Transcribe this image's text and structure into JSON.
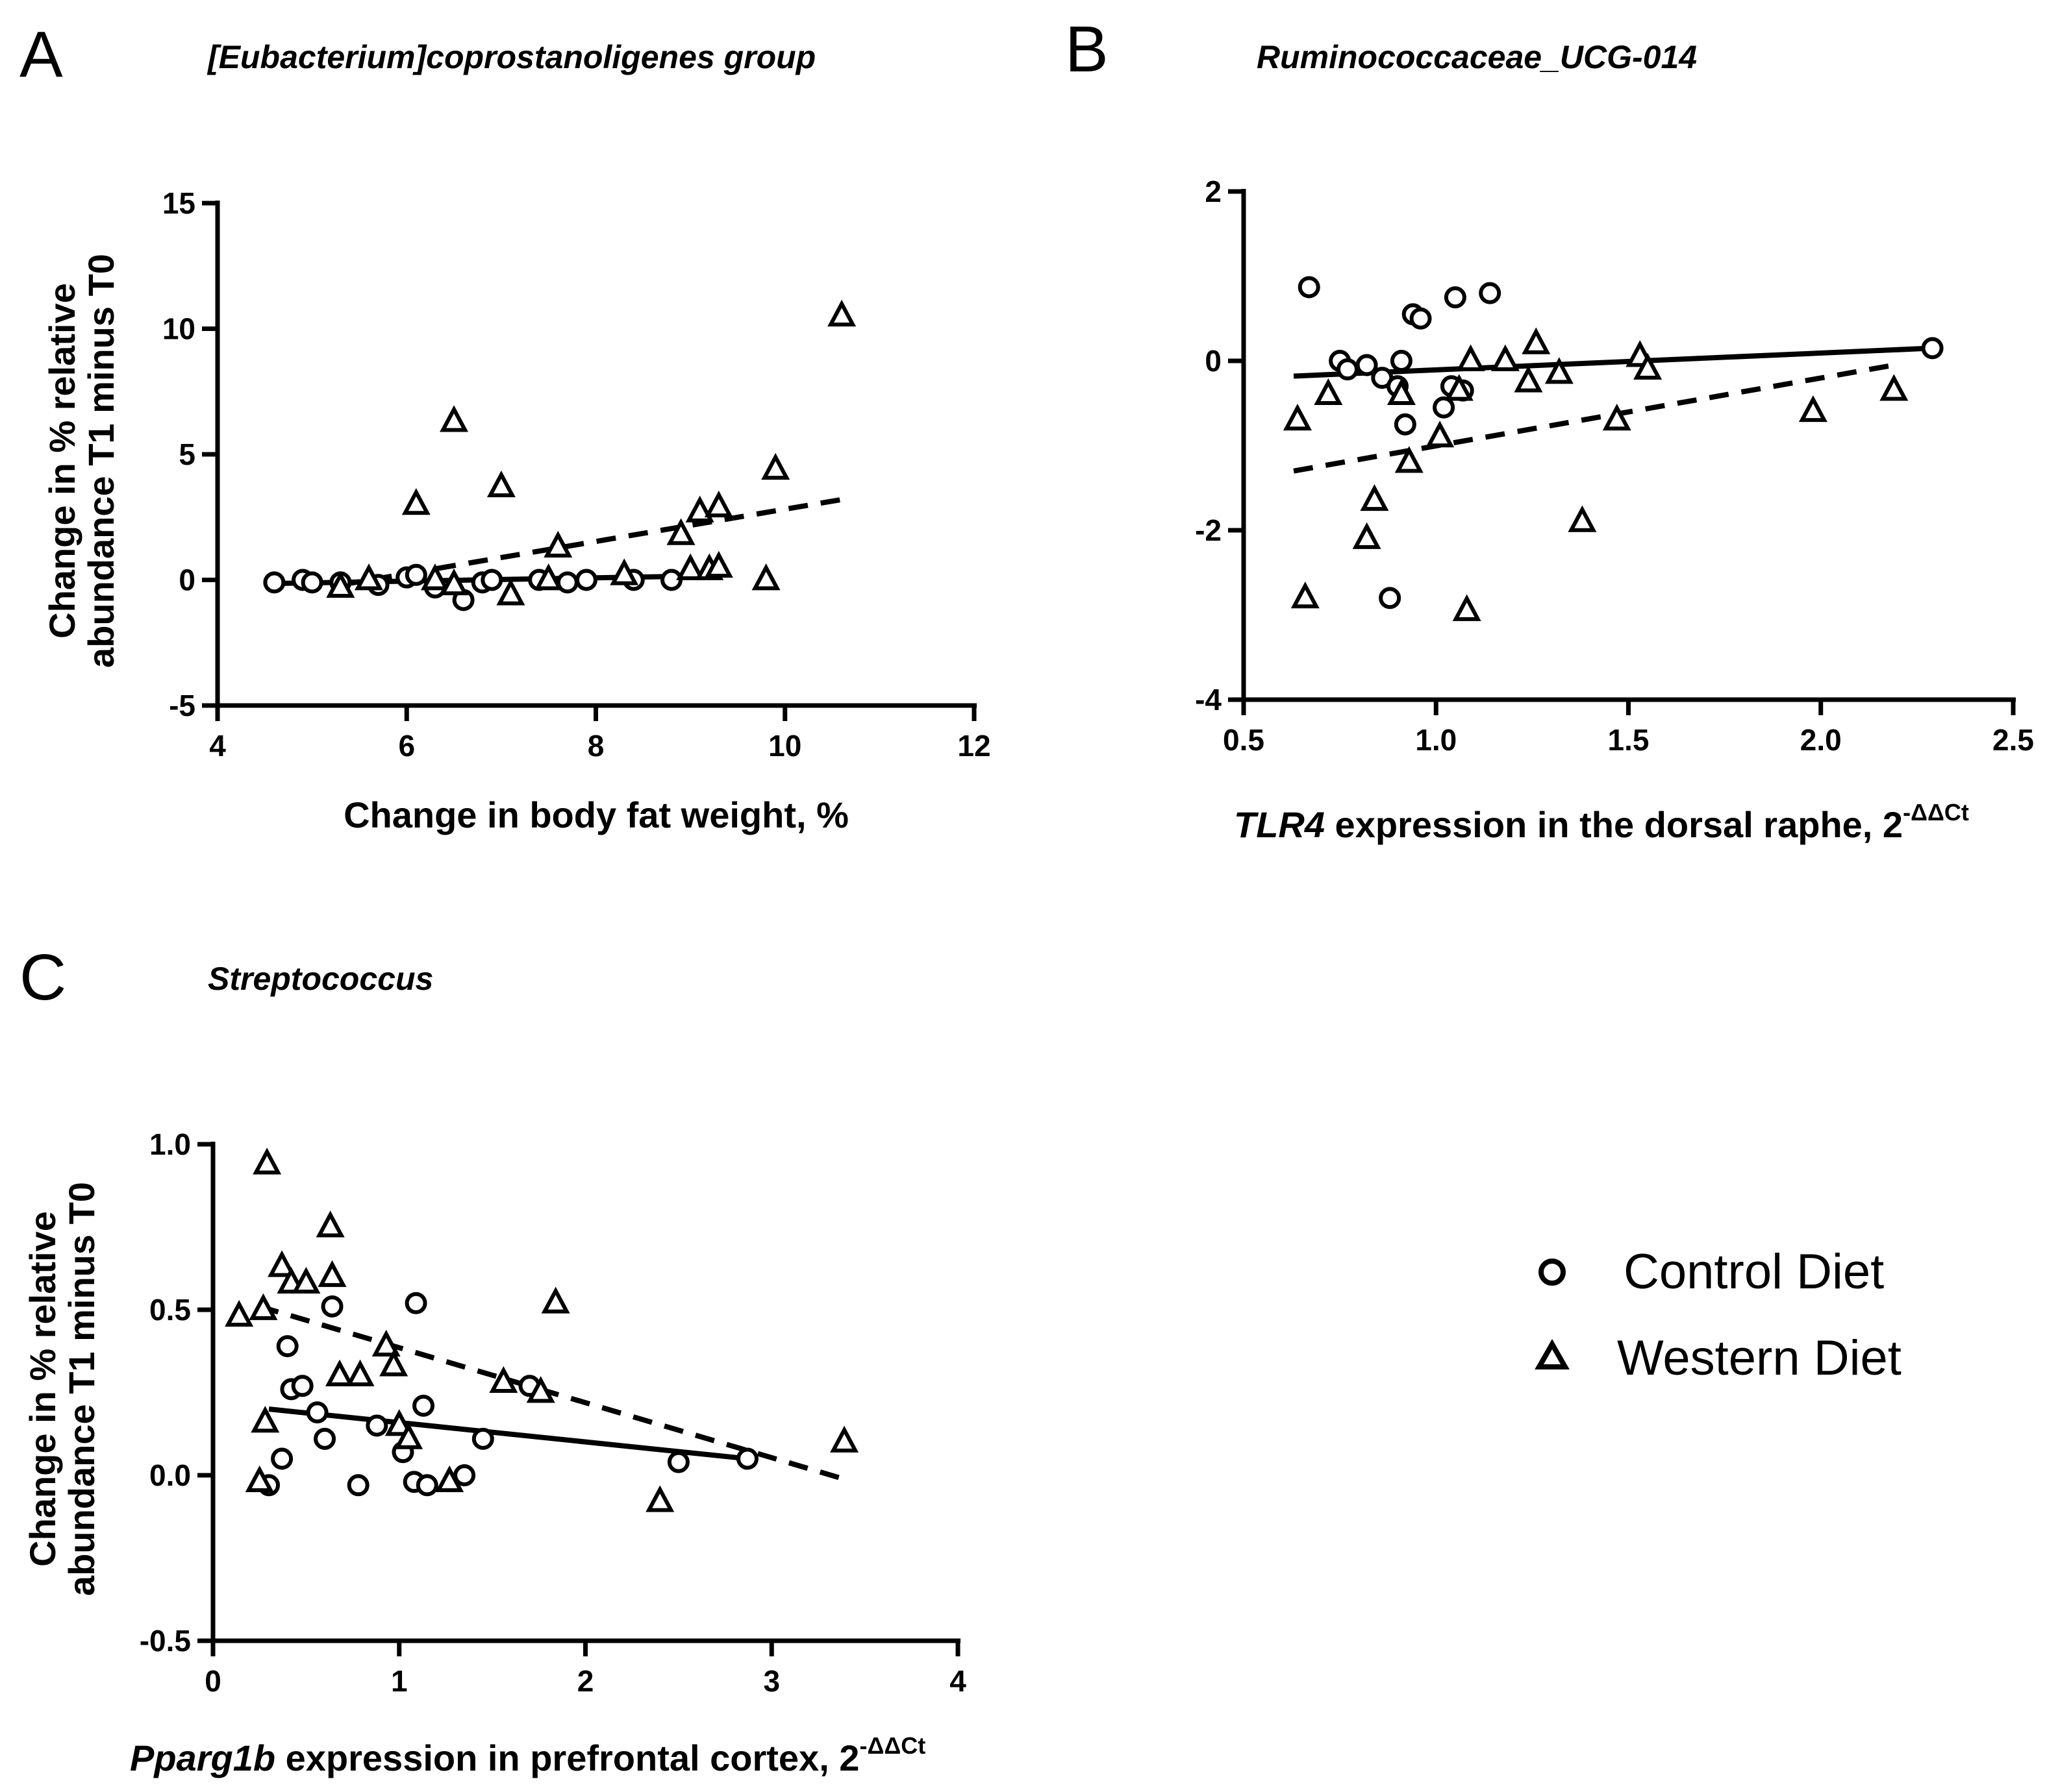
{
  "chart_data": [
    {
      "panel": "A",
      "type": "scatter",
      "title": "[Eubacterium]coprostanoligenes group",
      "xlabel": "Change in body fat weight, %",
      "xlabel_italic": "",
      "xlabel_rest": "Change in body fat weight, %",
      "xlabel_sup": "",
      "ylabel": [
        "Change in % relative",
        "abundance T1 minus T0"
      ],
      "xlim": [
        4,
        12
      ],
      "ylim": [
        -5,
        15
      ],
      "xticks": [
        4,
        6,
        8,
        10,
        12
      ],
      "yticks": [
        -5,
        0,
        5,
        10,
        15
      ],
      "xtick_labels": [
        "4",
        "6",
        "8",
        "10",
        "12"
      ],
      "ytick_labels": [
        "-5",
        "0",
        "5",
        "10",
        "15"
      ],
      "series": [
        {
          "name": "Control Diet",
          "marker": "circle",
          "points": [
            [
              4.6,
              -0.1
            ],
            [
              4.9,
              0.0
            ],
            [
              5.0,
              -0.1
            ],
            [
              5.3,
              -0.1
            ],
            [
              5.7,
              -0.2
            ],
            [
              6.0,
              0.1
            ],
            [
              6.1,
              0.2
            ],
            [
              6.3,
              -0.3
            ],
            [
              6.6,
              -0.8
            ],
            [
              6.8,
              -0.1
            ],
            [
              6.9,
              0.0
            ],
            [
              7.4,
              0.0
            ],
            [
              7.7,
              -0.1
            ],
            [
              7.9,
              0.0
            ],
            [
              8.4,
              0.0
            ],
            [
              8.8,
              0.0
            ]
          ],
          "fit": {
            "x": [
              4.5,
              9.0
            ],
            "y": [
              -0.15,
              0.15
            ],
            "style": "solid"
          }
        },
        {
          "name": "Western Diet",
          "marker": "triangle",
          "points": [
            [
              5.3,
              -0.3
            ],
            [
              5.6,
              0.0
            ],
            [
              6.1,
              3.0
            ],
            [
              6.3,
              0.0
            ],
            [
              6.5,
              6.3
            ],
            [
              6.5,
              -0.2
            ],
            [
              7.0,
              3.7
            ],
            [
              7.1,
              -0.6
            ],
            [
              7.5,
              0.0
            ],
            [
              7.6,
              1.3
            ],
            [
              8.3,
              0.2
            ],
            [
              8.9,
              1.8
            ],
            [
              9.0,
              0.4
            ],
            [
              9.1,
              2.7
            ],
            [
              9.2,
              0.4
            ],
            [
              9.3,
              0.5
            ],
            [
              9.3,
              2.9
            ],
            [
              9.8,
              0.0
            ],
            [
              9.9,
              4.4
            ],
            [
              10.6,
              10.5
            ]
          ],
          "fit": {
            "x": [
              5.3,
              10.6
            ],
            "y": [
              -0.2,
              3.2
            ],
            "style": "dashed"
          }
        }
      ]
    },
    {
      "panel": "B",
      "type": "scatter",
      "title": "Ruminococcaceae_UCG-014",
      "xlabel": "TLR4 expression in the dorsal raphe, 2-ΔΔCt",
      "xlabel_italic": "TLR4",
      "xlabel_rest": " expression in the dorsal raphe, 2",
      "xlabel_sup": "-ΔΔCt",
      "ylabel": [],
      "xlim": [
        0.5,
        2.5
      ],
      "ylim": [
        -4,
        2
      ],
      "xticks": [
        0.5,
        1.0,
        1.5,
        2.0,
        2.5
      ],
      "yticks": [
        -4,
        -2,
        0,
        2
      ],
      "xtick_labels": [
        "0.5",
        "1.0",
        "1.5",
        "2.0",
        "2.5"
      ],
      "ytick_labels": [
        "-4",
        "-2",
        "0",
        "2"
      ],
      "series": [
        {
          "name": "Control Diet",
          "marker": "circle",
          "points": [
            [
              0.67,
              0.87
            ],
            [
              0.75,
              0.0
            ],
            [
              0.77,
              -0.1
            ],
            [
              0.82,
              -0.05
            ],
            [
              0.86,
              -0.2
            ],
            [
              0.88,
              -2.8
            ],
            [
              0.9,
              -0.3
            ],
            [
              0.91,
              0.0
            ],
            [
              0.92,
              -0.75
            ],
            [
              0.94,
              0.55
            ],
            [
              0.96,
              0.5
            ],
            [
              1.02,
              -0.55
            ],
            [
              1.04,
              -0.3
            ],
            [
              1.05,
              0.75
            ],
            [
              1.07,
              -0.35
            ],
            [
              1.14,
              0.8
            ],
            [
              2.29,
              0.15
            ]
          ],
          "fit": {
            "x": [
              0.63,
              2.29
            ],
            "y": [
              -0.18,
              0.15
            ],
            "style": "solid"
          }
        },
        {
          "name": "Western Diet",
          "marker": "triangle",
          "points": [
            [
              0.64,
              -0.7
            ],
            [
              0.66,
              -2.8
            ],
            [
              0.72,
              -0.4
            ],
            [
              0.82,
              -2.1
            ],
            [
              0.84,
              -1.65
            ],
            [
              0.91,
              -0.4
            ],
            [
              0.93,
              -1.2
            ],
            [
              1.01,
              -0.9
            ],
            [
              1.06,
              -0.35
            ],
            [
              1.08,
              -2.95
            ],
            [
              1.09,
              0.0
            ],
            [
              1.18,
              0.0
            ],
            [
              1.24,
              -0.25
            ],
            [
              1.26,
              0.2
            ],
            [
              1.32,
              -0.15
            ],
            [
              1.38,
              -1.9
            ],
            [
              1.47,
              -0.7
            ],
            [
              1.53,
              0.05
            ],
            [
              1.55,
              -0.1
            ],
            [
              1.98,
              -0.6
            ],
            [
              2.19,
              -0.35
            ]
          ],
          "fit": {
            "x": [
              0.63,
              2.19
            ],
            "y": [
              -1.3,
              -0.05
            ],
            "style": "dashed"
          }
        }
      ]
    },
    {
      "panel": "C",
      "type": "scatter",
      "title": "Streptococcus",
      "xlabel": "Pparg1b expression in prefrontal cortex, 2-ΔΔCt",
      "xlabel_italic": "Pparg1b",
      "xlabel_rest": " expression in prefrontal cortex, 2",
      "xlabel_sup": "-ΔΔCt",
      "ylabel": [
        "Change in % relative",
        "abundance T1 minus T0"
      ],
      "xlim": [
        0,
        4
      ],
      "ylim": [
        -0.5,
        1.0
      ],
      "xticks": [
        0,
        1,
        2,
        3,
        4
      ],
      "yticks": [
        -0.5,
        0.0,
        0.5,
        1.0
      ],
      "xtick_labels": [
        "0",
        "1",
        "2",
        "3",
        "4"
      ],
      "ytick_labels": [
        "-0.5",
        "0.0",
        "0.5",
        "1.0"
      ],
      "series": [
        {
          "name": "Control Diet",
          "marker": "circle",
          "points": [
            [
              0.3,
              -0.03
            ],
            [
              0.37,
              0.05
            ],
            [
              0.4,
              0.39
            ],
            [
              0.42,
              0.26
            ],
            [
              0.48,
              0.27
            ],
            [
              0.56,
              0.19
            ],
            [
              0.6,
              0.11
            ],
            [
              0.64,
              0.51
            ],
            [
              0.78,
              -0.03
            ],
            [
              0.88,
              0.15
            ],
            [
              1.02,
              0.07
            ],
            [
              1.08,
              -0.02
            ],
            [
              1.09,
              0.52
            ],
            [
              1.13,
              0.21
            ],
            [
              1.15,
              -0.03
            ],
            [
              1.35,
              0.0
            ],
            [
              1.45,
              0.11
            ],
            [
              1.7,
              0.27
            ],
            [
              2.5,
              0.04
            ],
            [
              2.87,
              0.05
            ]
          ],
          "fit": {
            "x": [
              0.3,
              2.87
            ],
            "y": [
              0.2,
              0.05
            ],
            "style": "solid"
          }
        },
        {
          "name": "Western Diet",
          "marker": "triangle",
          "points": [
            [
              0.14,
              0.48
            ],
            [
              0.25,
              -0.02
            ],
            [
              0.27,
              0.5
            ],
            [
              0.28,
              0.16
            ],
            [
              0.29,
              0.94
            ],
            [
              0.37,
              0.63
            ],
            [
              0.42,
              0.58
            ],
            [
              0.5,
              0.58
            ],
            [
              0.63,
              0.75
            ],
            [
              0.64,
              0.6
            ],
            [
              0.68,
              0.3
            ],
            [
              0.79,
              0.3
            ],
            [
              0.93,
              0.39
            ],
            [
              0.97,
              0.33
            ],
            [
              1.0,
              0.15
            ],
            [
              1.05,
              0.11
            ],
            [
              1.27,
              -0.02
            ],
            [
              1.56,
              0.28
            ],
            [
              1.76,
              0.25
            ],
            [
              1.84,
              0.52
            ],
            [
              2.4,
              -0.08
            ],
            [
              3.39,
              0.1
            ]
          ],
          "fit": {
            "x": [
              0.25,
              3.38
            ],
            "y": [
              0.51,
              -0.01
            ],
            "style": "dashed"
          }
        }
      ]
    }
  ],
  "legend": {
    "items": [
      {
        "label": "Control Diet",
        "marker": "circle"
      },
      {
        "label": "Western Diet",
        "marker": "triangle"
      }
    ]
  }
}
